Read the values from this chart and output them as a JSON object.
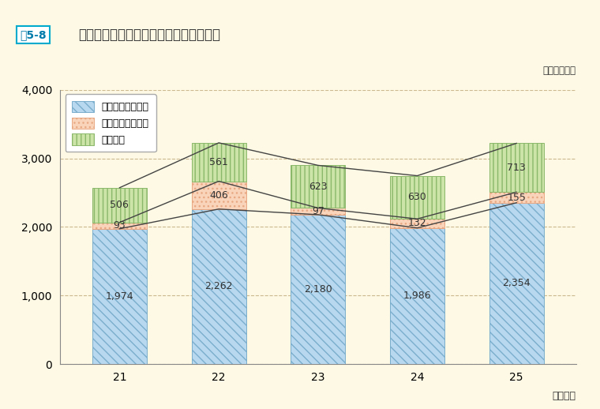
{
  "title_box": "嘨5-8",
  "title_text": "公務災害及び通勤災害の認定件数の推移",
  "unit_label": "（単位：件）",
  "xlabel": "（年度）",
  "years": [
    21,
    22,
    23,
    24,
    25
  ],
  "injury": [
    1974,
    2262,
    2180,
    1986,
    2354
  ],
  "disease": [
    93,
    406,
    97,
    132,
    155
  ],
  "commute": [
    506,
    561,
    623,
    630,
    713
  ],
  "ylim": [
    0,
    4000
  ],
  "yticks": [
    0,
    1000,
    2000,
    3000,
    4000
  ],
  "background_color": "#fdf9e4",
  "plot_bg_color": "#fdf9e4",
  "bar_injury_color": "#b8d8ef",
  "bar_injury_edge": "#7aaecc",
  "bar_disease_color": "#f9d4bb",
  "bar_disease_edge": "#e8a882",
  "bar_commute_color": "#cde4a8",
  "bar_commute_edge": "#8ab86a",
  "line_color": "#444444",
  "legend_labels": [
    "公務災害（負傷）",
    "公務災害（疾病）",
    "通勤災害"
  ],
  "grid_color": "#ccb990",
  "bar_width": 0.55,
  "label_fontsize": 9,
  "tick_fontsize": 10
}
